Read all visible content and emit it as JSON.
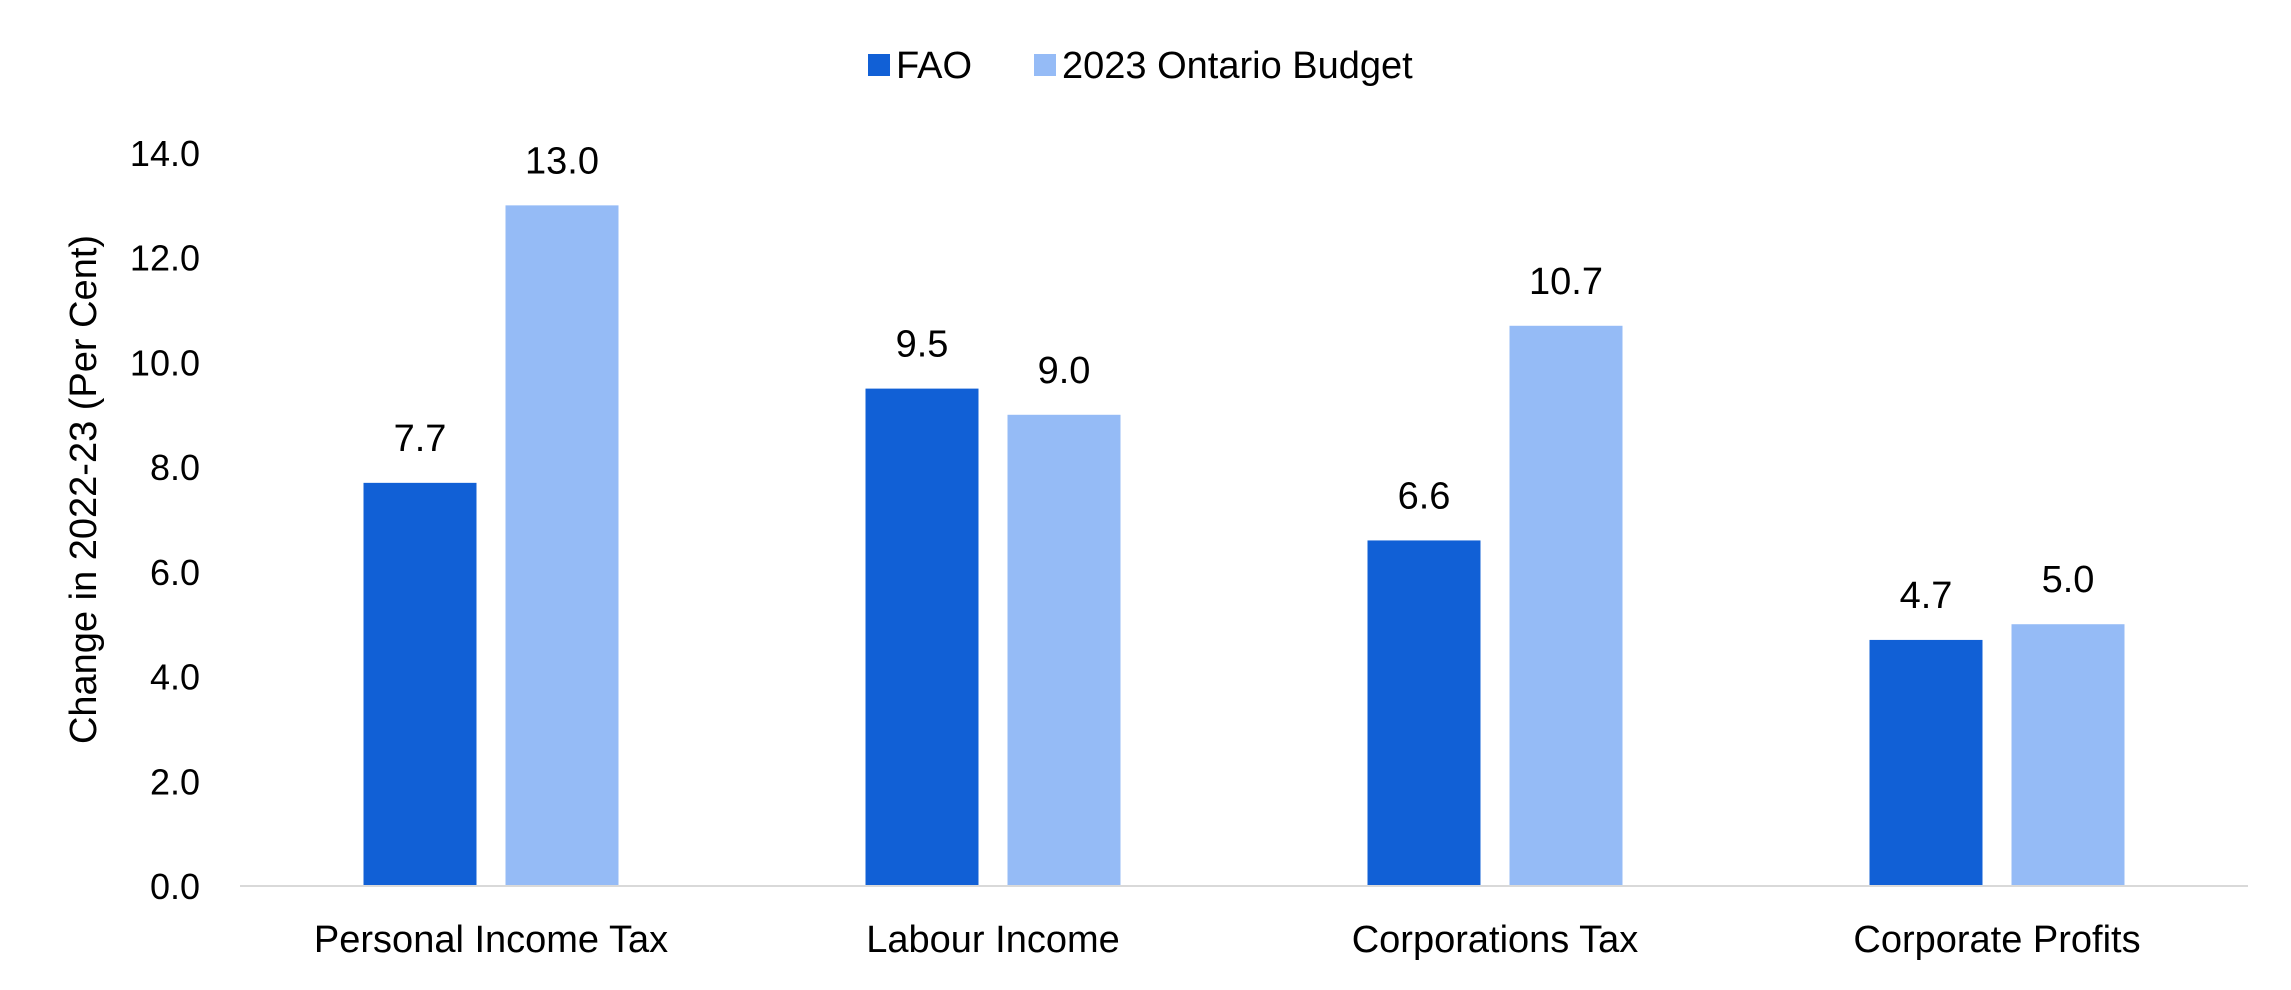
{
  "chart_data": {
    "type": "bar",
    "title": "",
    "xlabel": "",
    "ylabel": "Change in 2022-23 (Per Cent)",
    "ylim": [
      0,
      14
    ],
    "yticks": [
      "0.0",
      "2.0",
      "4.0",
      "6.0",
      "8.0",
      "10.0",
      "12.0",
      "14.0"
    ],
    "grid": false,
    "legend_position": "top-center",
    "categories": [
      "Personal Income Tax",
      "Labour Income",
      "Corporations Tax",
      "Corporate Profits"
    ],
    "series": [
      {
        "name": "FAO",
        "color": "#1160D6",
        "values": [
          7.7,
          9.5,
          6.6,
          4.7
        ],
        "labels": [
          "7.7",
          "9.5",
          "6.6",
          "4.7"
        ]
      },
      {
        "name": "2023 Ontario Budget",
        "color": "#95BBF6",
        "values": [
          13.0,
          9.0,
          10.7,
          5.0
        ],
        "labels": [
          "13.0",
          "9.0",
          "10.7",
          "5.0"
        ]
      }
    ]
  }
}
